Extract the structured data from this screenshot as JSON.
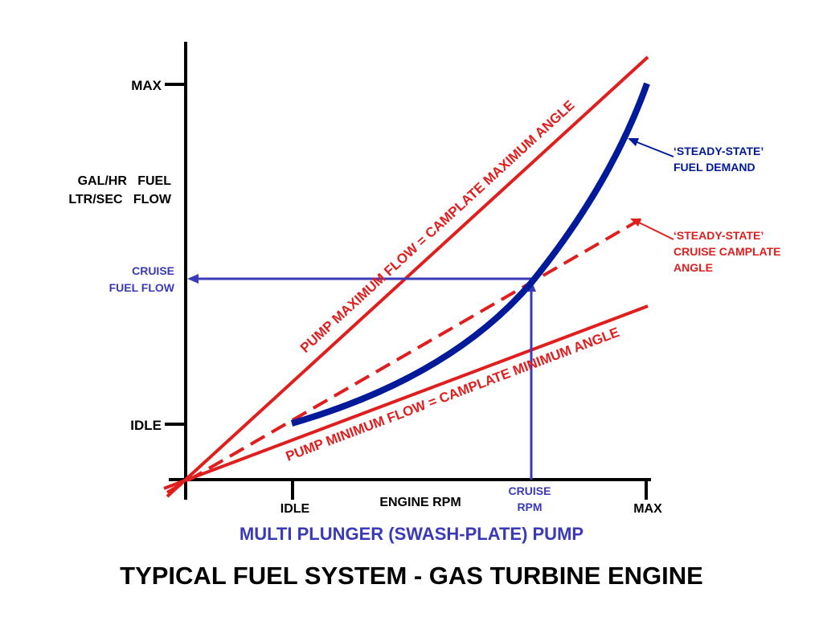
{
  "title": "TYPICAL FUEL SYSTEM - GAS TURBINE ENGINE",
  "subtitle": "MULTI PLUNGER (SWASH-PLATE) PUMP",
  "y_axis": {
    "label_line1": "GAL/HR   FUEL",
    "label_line2": "LTR/SEC   FLOW",
    "tick_max": "MAX",
    "tick_idle": "IDLE",
    "cruise_line1": "CRUISE",
    "cruise_line2": "FUEL FLOW"
  },
  "x_axis": {
    "label": "ENGINE RPM",
    "tick_idle": "IDLE",
    "tick_max": "MAX",
    "cruise_line1": "CRUISE",
    "cruise_line2": "RPM"
  },
  "lines": {
    "max_flow": "PUMP MAXIMUM FLOW = CAMPLATE MAXIMUM ANGLE",
    "min_flow": "PUMP MINIMUM FLOW = CAMPLATE MINIMUM ANGLE"
  },
  "annotations": {
    "demand_line1": "‘STEADY-STATE’",
    "demand_line2": "FUEL DEMAND",
    "camplate_line1": "‘STEADY-STATE’",
    "camplate_line2": "CRUISE CAMPLATE",
    "camplate_line3": "ANGLE"
  },
  "colors": {
    "axis": "#000000",
    "pump_lines": "#e01e1e",
    "fuel_demand": "#001a99",
    "cruise_guides": "#3a3ab8"
  }
}
